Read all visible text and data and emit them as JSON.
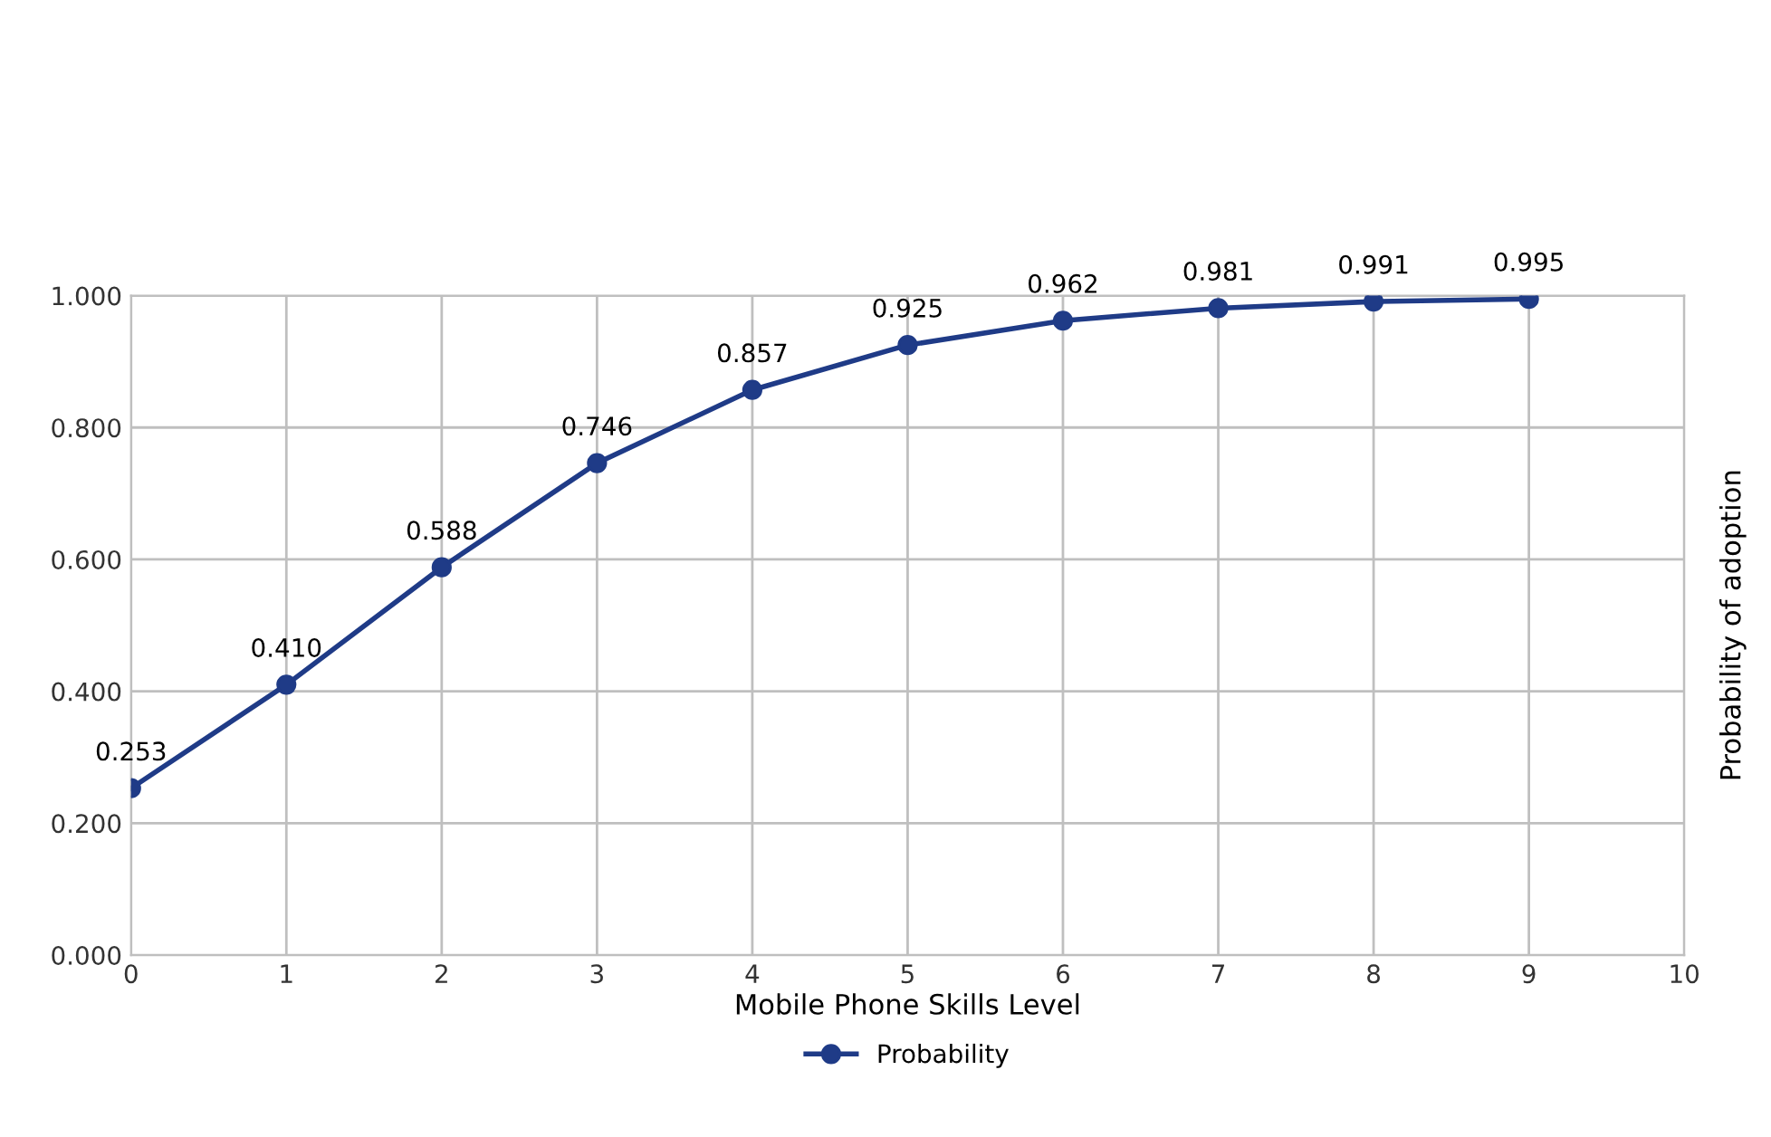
{
  "chart_data": {
    "type": "line",
    "x": [
      0,
      1,
      2,
      3,
      4,
      5,
      6,
      7,
      8,
      9
    ],
    "series": [
      {
        "name": "Probability",
        "color": "#1f3b87",
        "values": [
          0.253,
          0.41,
          0.588,
          0.746,
          0.857,
          0.925,
          0.962,
          0.981,
          0.991,
          0.995
        ],
        "value_labels": [
          "0.253",
          "0.410",
          "0.588",
          "0.746",
          "0.857",
          "0.925",
          "0.962",
          "0.981",
          "0.991",
          "0.995"
        ]
      }
    ],
    "xlabel": "Mobile Phone Skills Level",
    "ylabel": "Probability of adoption",
    "xlim": [
      0,
      10
    ],
    "xticks": [
      0,
      1,
      2,
      3,
      4,
      5,
      6,
      7,
      8,
      9,
      10
    ],
    "ylim": [
      0,
      1
    ],
    "yticks": [
      {
        "value": 0,
        "label": "0.000"
      },
      {
        "value": 0.2,
        "label": "0.200"
      },
      {
        "value": 0.4,
        "label": "0.400"
      },
      {
        "value": 0.6,
        "label": "0.600"
      },
      {
        "value": 0.8,
        "label": "0.800"
      },
      {
        "value": 1,
        "label": "1.000"
      }
    ],
    "grid": true,
    "legend": "bottom",
    "marker": "circle",
    "line_style": "solid"
  }
}
